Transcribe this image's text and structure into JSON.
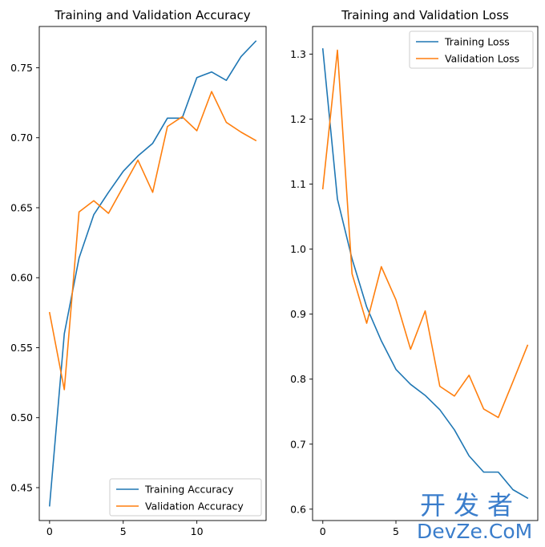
{
  "chart_data": [
    {
      "type": "line",
      "title": "Training and Validation Accuracy",
      "xlabel": "",
      "ylabel": "",
      "xlim": [
        -0.7,
        14.7
      ],
      "ylim": [
        0.4265,
        0.7795
      ],
      "xticks": [
        0,
        5,
        10
      ],
      "yticks": [
        0.45,
        0.5,
        0.55,
        0.6,
        0.65,
        0.7,
        0.75
      ],
      "ytick_labels": [
        "0.45",
        "0.50",
        "0.55",
        "0.60",
        "0.65",
        "0.70",
        "0.75"
      ],
      "legend": "lower-right",
      "grid": false,
      "x": [
        0,
        1,
        2,
        3,
        4,
        5,
        6,
        7,
        8,
        9,
        10,
        11,
        12,
        13,
        14
      ],
      "series": [
        {
          "name": "Training Accuracy",
          "color": "#1f77b4",
          "values": [
            0.437,
            0.56,
            0.614,
            0.645,
            0.661,
            0.676,
            0.687,
            0.696,
            0.714,
            0.714,
            0.743,
            0.747,
            0.741,
            0.758,
            0.769
          ]
        },
        {
          "name": "Validation Accuracy",
          "color": "#ff7f0e",
          "values": [
            0.575,
            0.52,
            0.647,
            0.655,
            0.646,
            0.665,
            0.684,
            0.661,
            0.708,
            0.715,
            0.705,
            0.733,
            0.711,
            0.704,
            0.698
          ]
        }
      ]
    },
    {
      "type": "line",
      "title": "Training and Validation Loss",
      "xlabel": "",
      "ylabel": "",
      "xlim": [
        -0.7,
        14.7
      ],
      "ylim": [
        0.5825,
        1.3425
      ],
      "xticks": [
        0,
        5
      ],
      "yticks": [
        0.6,
        0.7,
        0.8,
        0.9,
        1.0,
        1.1,
        1.2,
        1.3
      ],
      "ytick_labels": [
        "0.6",
        "0.7",
        "0.8",
        "0.9",
        "1.0",
        "1.1",
        "1.2",
        "1.3"
      ],
      "legend": "upper-right",
      "grid": false,
      "x": [
        0,
        1,
        2,
        3,
        4,
        5,
        6,
        7,
        8,
        9,
        10,
        11,
        12,
        13,
        14
      ],
      "series": [
        {
          "name": "Training Loss",
          "color": "#1f77b4",
          "values": [
            1.308,
            1.077,
            0.985,
            0.911,
            0.859,
            0.815,
            0.792,
            0.775,
            0.753,
            0.722,
            0.682,
            0.657,
            0.657,
            0.63,
            0.617
          ]
        },
        {
          "name": "Validation Loss",
          "color": "#ff7f0e",
          "values": [
            1.093,
            1.306,
            0.962,
            0.886,
            0.973,
            0.922,
            0.846,
            0.905,
            0.789,
            0.774,
            0.806,
            0.754,
            0.741,
            0.796,
            0.852
          ]
        }
      ]
    }
  ],
  "watermark": {
    "line1": "开发者",
    "line2": "DevZe.CoM",
    "color": "#2a73c7"
  }
}
